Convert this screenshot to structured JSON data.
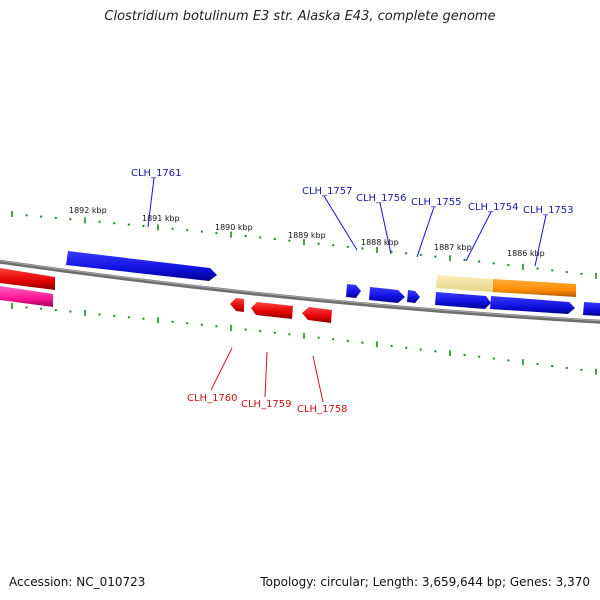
{
  "title": "Clostridium botulinum E3 str. Alaska E43, complete genome",
  "footer": {
    "accession": "Accession: NC_010723",
    "stats": "Topology: circular; Length: 3,659,644 bp; Genes: 3,370"
  },
  "colors": {
    "backbone": "#7a7a7a",
    "plus_gene": "#1212e0",
    "minus_gene": "#e81010",
    "tick": "#1e8a1e",
    "rna_pale": "#f2e6a0",
    "rna_orange": "#ff8c00",
    "pink": "#ff1493",
    "plus_label": "#1a1aa8",
    "minus_label": "#cc1111"
  },
  "scale_labels": [
    {
      "text": "1892 kbp",
      "kbp": 1892
    },
    {
      "text": "1891 kbp",
      "kbp": 1891
    },
    {
      "text": "1890 kbp",
      "kbp": 1890
    },
    {
      "text": "1889 kbp",
      "kbp": 1889
    },
    {
      "text": "1888 kbp",
      "kbp": 1888
    },
    {
      "text": "1887 kbp",
      "kbp": 1887
    },
    {
      "text": "1886 kbp",
      "kbp": 1886
    }
  ],
  "genes_plus": [
    {
      "label": "CLH_1757"
    },
    {
      "label": "CLH_1756"
    },
    {
      "label": "CLH_1755"
    },
    {
      "label": "CLH_1754"
    },
    {
      "label": "CLH_1753"
    },
    {
      "label": "CLH_1761"
    }
  ],
  "genes_minus": [
    {
      "label": "CLH_1760"
    },
    {
      "label": "CLH_1759"
    },
    {
      "label": "CLH_1758"
    }
  ]
}
